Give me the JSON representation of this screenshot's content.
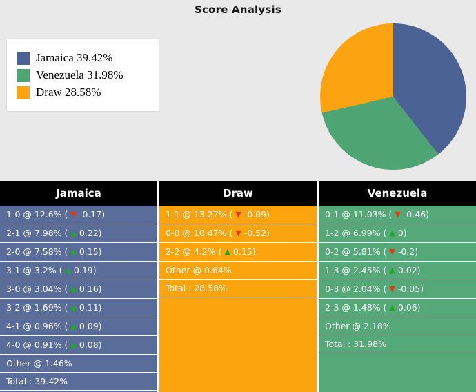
{
  "title": "Score Analysis",
  "legend": {
    "items": [
      {
        "label": "Jamaica 39.42%",
        "color": "#4b6294"
      },
      {
        "label": "Venezuela 31.98%",
        "color": "#4fa473"
      },
      {
        "label": "Draw 28.58%",
        "color": "#fca311"
      }
    ]
  },
  "chart_data": {
    "type": "pie",
    "title": "Score Analysis",
    "labels": [
      "Jamaica",
      "Venezuela",
      "Draw"
    ],
    "values": [
      39.42,
      31.98,
      28.58
    ],
    "colors": [
      "#4b6294",
      "#4fa473",
      "#fca311"
    ],
    "legend_position": "left",
    "start_angle_deg": 0
  },
  "icons": {
    "up": "▲",
    "down": "▼",
    "up_color": "#1ea826",
    "down_color": "#e23a10"
  },
  "columns": [
    {
      "header": "Jamaica",
      "bg": "#5a6d9a",
      "rows": [
        {
          "text": "1-0 @ 12.6%",
          "change": "-0.17",
          "dir": "down"
        },
        {
          "text": "2-1 @ 7.98%",
          "change": "0.22",
          "dir": "up"
        },
        {
          "text": "2-0 @ 7.58%",
          "change": "0.15",
          "dir": "up"
        },
        {
          "text": "3-1 @ 3.2%",
          "change": "0.19",
          "dir": "up"
        },
        {
          "text": "3-0 @ 3.04%",
          "change": "0.16",
          "dir": "up"
        },
        {
          "text": "3-2 @ 1.69%",
          "change": "0.11",
          "dir": "up"
        },
        {
          "text": "4-1 @ 0.96%",
          "change": "0.09",
          "dir": "up"
        },
        {
          "text": "4-0 @ 0.91%",
          "change": "0.08",
          "dir": "up"
        },
        {
          "text": "Other @ 1.46%"
        },
        {
          "text": "Total : 39.42%"
        }
      ]
    },
    {
      "header": "Draw",
      "bg": "#fca40d",
      "rows": [
        {
          "text": "1-1 @ 13.27%",
          "change": "-0.09",
          "dir": "down"
        },
        {
          "text": "0-0 @ 10.47%",
          "change": "-0.52",
          "dir": "down"
        },
        {
          "text": "2-2 @ 4.2%",
          "change": "0.15",
          "dir": "up"
        },
        {
          "text": "Other @ 0.64%"
        },
        {
          "text": "Total : 28.58%"
        }
      ]
    },
    {
      "header": "Venezuela",
      "bg": "#55a878",
      "rows": [
        {
          "text": "0-1 @ 11.03%",
          "change": "-0.46",
          "dir": "down"
        },
        {
          "text": "1-2 @ 6.99%",
          "change": "0",
          "dir": "up"
        },
        {
          "text": "0-2 @ 5.81%",
          "change": "-0.2",
          "dir": "down"
        },
        {
          "text": "1-3 @ 2.45%",
          "change": "0.02",
          "dir": "up"
        },
        {
          "text": "0-3 @ 2.04%",
          "change": "-0.05",
          "dir": "down"
        },
        {
          "text": "2-3 @ 1.48%",
          "change": "0.06",
          "dir": "up"
        },
        {
          "text": "Other @ 2.18%"
        },
        {
          "text": "Total : 31.98%"
        }
      ]
    }
  ]
}
